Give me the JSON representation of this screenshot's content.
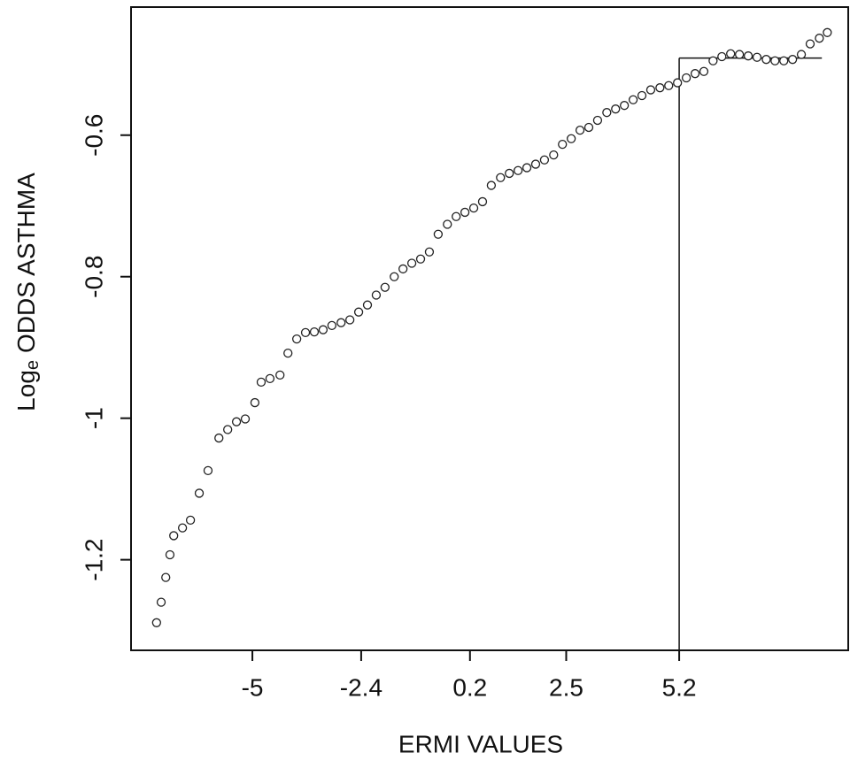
{
  "chart_data": {
    "type": "scatter",
    "x_label": "ERMI VALUES",
    "y_label": {
      "base": "Log",
      "subscript": "e",
      "rest": "ODDS ASTHMA"
    },
    "xlim": [
      -7.9,
      9.24
    ],
    "ylim": [
      -1.328,
      -0.419
    ],
    "xticks": [
      -5.0,
      -2.4,
      0.2,
      2.5,
      5.2
    ],
    "yticks": [
      -1.2,
      -1.0,
      -0.8,
      -0.6
    ],
    "marker_color": "#222222",
    "reference_lines": {
      "x": 5.2,
      "y": -0.491,
      "x_end": 8.61
    },
    "x": [
      -7.29,
      -7.18,
      -7.07,
      -6.97,
      -6.88,
      -6.67,
      -6.48,
      -6.27,
      -6.06,
      -5.8,
      -5.59,
      -5.38,
      -5.17,
      -4.94,
      -4.79,
      -4.58,
      -4.34,
      -4.15,
      -3.94,
      -3.73,
      -3.52,
      -3.31,
      -3.1,
      -2.88,
      -2.67,
      -2.46,
      -2.25,
      -2.04,
      -1.83,
      -1.61,
      -1.4,
      -1.19,
      -0.98,
      -0.77,
      -0.56,
      -0.34,
      -0.13,
      0.08,
      0.29,
      0.5,
      0.71,
      0.93,
      1.14,
      1.35,
      1.56,
      1.77,
      1.98,
      2.2,
      2.41,
      2.62,
      2.83,
      3.04,
      3.25,
      3.47,
      3.68,
      3.89,
      4.1,
      4.31,
      4.52,
      4.74,
      4.95,
      5.16,
      5.37,
      5.58,
      5.79,
      6.01,
      6.22,
      6.43,
      6.64,
      6.85,
      7.06,
      7.28,
      7.49,
      7.7,
      7.91,
      8.12,
      8.33,
      8.55,
      8.74
    ],
    "y": [
      -1.289,
      -1.26,
      -1.225,
      -1.193,
      -1.166,
      -1.155,
      -1.144,
      -1.106,
      -1.074,
      -1.028,
      -1.016,
      -1.005,
      -1.001,
      -0.978,
      -0.949,
      -0.944,
      -0.939,
      -0.908,
      -0.888,
      -0.879,
      -0.878,
      -0.875,
      -0.869,
      -0.865,
      -0.861,
      -0.85,
      -0.84,
      -0.826,
      -0.815,
      -0.8,
      -0.789,
      -0.781,
      -0.775,
      -0.765,
      -0.74,
      -0.726,
      -0.715,
      -0.709,
      -0.703,
      -0.694,
      -0.671,
      -0.66,
      -0.654,
      -0.65,
      -0.646,
      -0.641,
      -0.635,
      -0.628,
      -0.613,
      -0.605,
      -0.593,
      -0.589,
      -0.579,
      -0.568,
      -0.563,
      -0.558,
      -0.55,
      -0.544,
      -0.536,
      -0.533,
      -0.53,
      -0.526,
      -0.519,
      -0.513,
      -0.51,
      -0.495,
      -0.489,
      -0.485,
      -0.486,
      -0.488,
      -0.49,
      -0.493,
      -0.495,
      -0.495,
      -0.493,
      -0.486,
      -0.471,
      -0.463,
      -0.455
    ]
  }
}
